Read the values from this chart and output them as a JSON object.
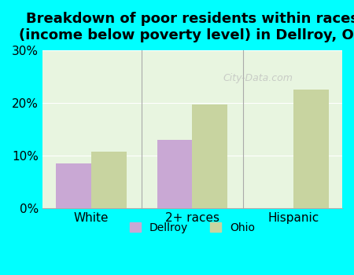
{
  "title": "Breakdown of poor residents within races\n(income below poverty level) in Dellroy, OH",
  "categories": [
    "White",
    "2+ races",
    "Hispanic"
  ],
  "dellroy_values": [
    8.5,
    13.0,
    0.0
  ],
  "ohio_values": [
    10.7,
    19.7,
    22.5
  ],
  "dellroy_color": "#c9a8d4",
  "ohio_color": "#c8d4a0",
  "background_color": "#00ffff",
  "plot_bg_color": "#e8f5e0",
  "ylim": [
    0,
    30
  ],
  "yticks": [
    0,
    10,
    20,
    30
  ],
  "ytick_labels": [
    "0%",
    "10%",
    "20%",
    "30%"
  ],
  "legend_labels": [
    "Dellroy",
    "Ohio"
  ],
  "bar_width": 0.35,
  "title_fontsize": 13,
  "tick_fontsize": 11
}
